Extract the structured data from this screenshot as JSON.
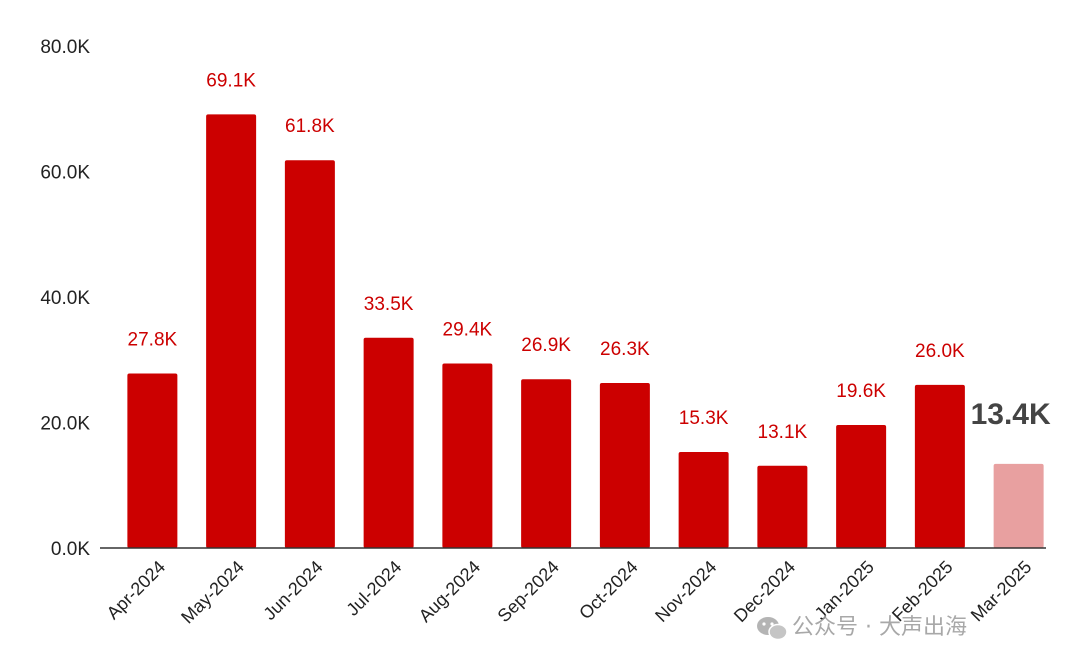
{
  "chart_data": {
    "type": "bar",
    "categories": [
      "Apr-2024",
      "May-2024",
      "Jun-2024",
      "Jul-2024",
      "Aug-2024",
      "Sep-2024",
      "Oct-2024",
      "Nov-2024",
      "Dec-2024",
      "Jan-2025",
      "Feb-2025",
      "Mar-2025"
    ],
    "values": [
      27.8,
      69.1,
      61.8,
      33.5,
      29.4,
      26.9,
      26.3,
      15.3,
      13.1,
      19.6,
      26.0,
      13.4
    ],
    "data_labels": [
      "27.8K",
      "69.1K",
      "61.8K",
      "33.5K",
      "29.4K",
      "26.9K",
      "26.3K",
      "15.3K",
      "13.1K",
      "19.6K",
      "26.0K",
      "13.4K"
    ],
    "y_ticks": [
      0,
      20,
      40,
      60,
      80
    ],
    "y_tick_labels": [
      "0.0K",
      "20.0K",
      "40.0K",
      "60.0K",
      "80.0K"
    ],
    "ylim": [
      0,
      80
    ],
    "title": "",
    "xlabel": "",
    "ylabel": "",
    "grid": false,
    "legend": "none",
    "highlight_index": 11,
    "colors": {
      "bar": "#cc0000",
      "bar_highlight": "#e8a0a0",
      "label": "#cc0000",
      "label_highlight": "#444444",
      "axis": "#333333"
    }
  },
  "watermark": {
    "text": "公众号 · 大声出海",
    "icon": "wechat-icon"
  }
}
